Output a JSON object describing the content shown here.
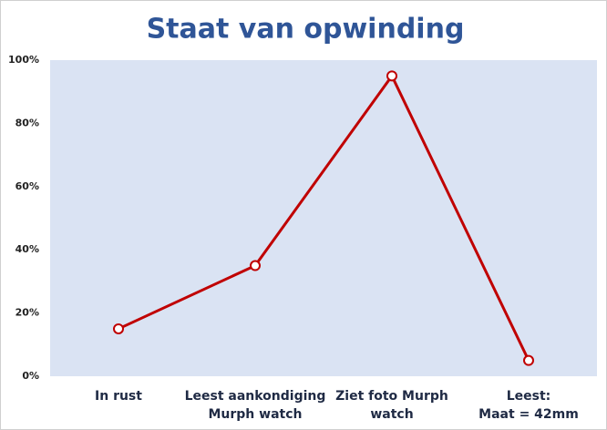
{
  "chart_data": {
    "type": "line",
    "title": "Staat van opwinding",
    "categories": [
      "In rust",
      "Leest aankondiging\nMurph watch",
      "Ziet foto Murph\nwatch",
      "Leest:\nMaat = 42mm"
    ],
    "values": [
      15,
      35,
      95,
      5
    ],
    "color": "#c00000",
    "ylim": [
      0,
      100
    ],
    "yticks": [
      {
        "value": 0,
        "label": "0%"
      },
      {
        "value": 20,
        "label": "20%"
      },
      {
        "value": 40,
        "label": "40%"
      },
      {
        "value": 60,
        "label": "60%"
      },
      {
        "value": 80,
        "label": "80%"
      },
      {
        "value": 100,
        "label": "100%"
      }
    ],
    "grid": false
  }
}
